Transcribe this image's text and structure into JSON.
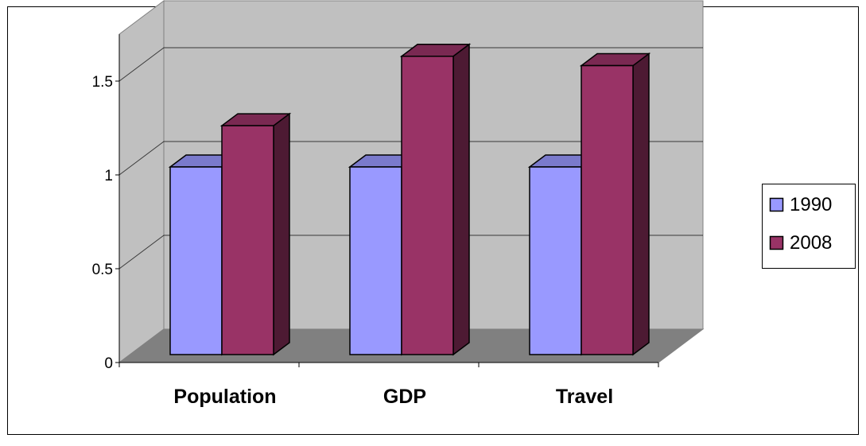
{
  "colors": {
    "wall": "#c0c0c0",
    "floor": "#808080",
    "series_1990": "#9999ff",
    "series_2008": "#993366"
  },
  "chart_data": {
    "type": "bar",
    "categories": [
      "Population",
      "GDP",
      "Travel"
    ],
    "series": [
      {
        "name": "1990",
        "values": [
          1.0,
          1.0,
          1.0
        ]
      },
      {
        "name": "2008",
        "values": [
          1.22,
          1.59,
          1.54
        ]
      }
    ],
    "ylim": [
      0,
      1.5
    ],
    "y_ticks": [
      "0",
      "0.5",
      "1",
      "1.5"
    ],
    "grid": true,
    "legend": "right",
    "style": "3d-clustered-column"
  }
}
